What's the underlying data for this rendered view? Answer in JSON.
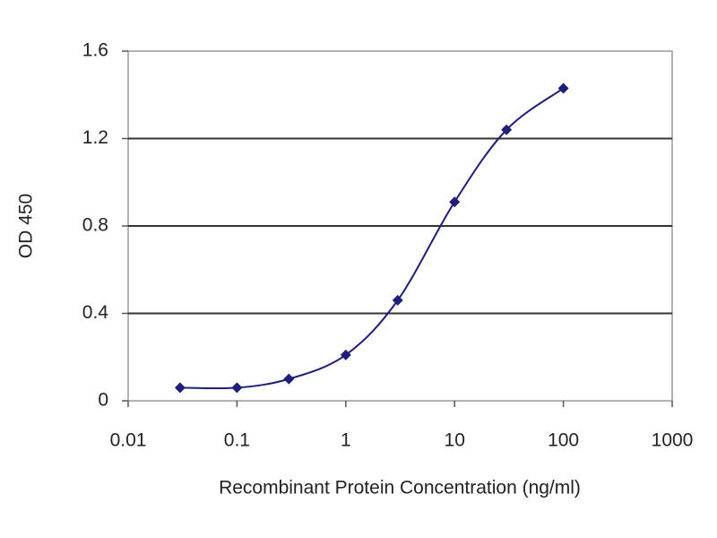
{
  "chart_data": {
    "type": "line",
    "x_label": "Recombinant Protein Concentration (ng/ml)",
    "y_label": "OD 450",
    "x": [
      0.03,
      0.1,
      0.3,
      1,
      3,
      10,
      30,
      100
    ],
    "series": [
      {
        "color": "#1f1f7a",
        "values": [
          0.06,
          0.06,
          0.1,
          0.21,
          0.46,
          0.91,
          1.24,
          1.43
        ]
      }
    ],
    "xscale": "log",
    "xlim": [
      0.01,
      1000
    ],
    "xticks": [
      0.01,
      0.1,
      1,
      10,
      100,
      1000
    ],
    "ylim": [
      0,
      1.6
    ],
    "yticks": [
      0,
      0.4,
      0.8,
      1.2,
      1.6
    ],
    "grid": true
  }
}
